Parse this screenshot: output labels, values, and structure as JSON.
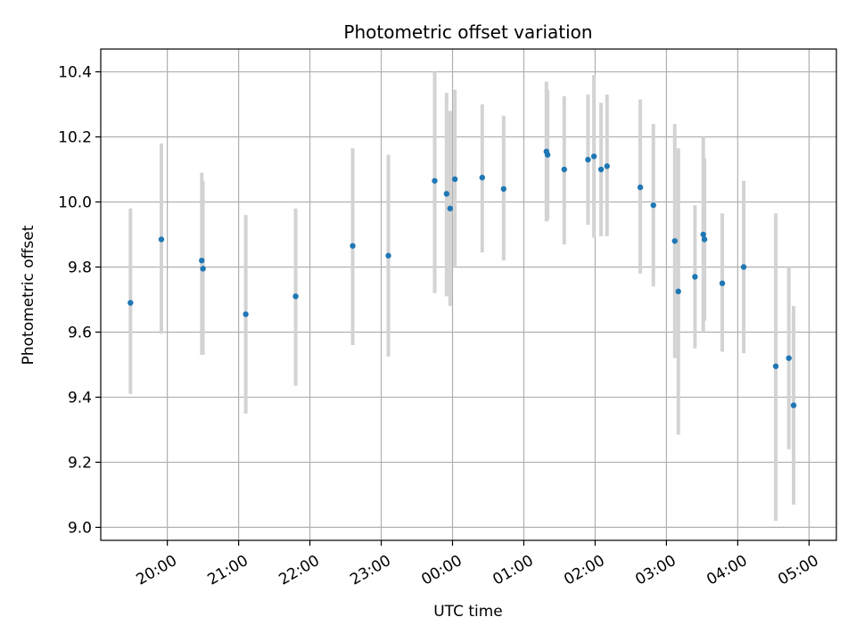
{
  "chart_data": {
    "type": "scatter",
    "title": "Photometric offset variation",
    "xlabel": "UTC time",
    "ylabel": "Photometric offset",
    "x_axis": {
      "kind": "time",
      "start": "19:04",
      "end": "05:23",
      "ticks": [
        "20:00",
        "21:00",
        "22:00",
        "23:00",
        "00:00",
        "01:00",
        "02:00",
        "03:00",
        "04:00",
        "05:00"
      ]
    },
    "y_axis": {
      "ylim": [
        8.96,
        10.47
      ],
      "ticks": [
        "9.0",
        "9.2",
        "9.4",
        "9.6",
        "9.8",
        "10.0",
        "10.2",
        "10.4"
      ]
    },
    "grid": true,
    "colors": {
      "points": "#1f77b4",
      "errorbars": "#d3d3d3",
      "grid": "#b0b0b0"
    },
    "points": [
      {
        "x": "19:29",
        "y": 9.69,
        "err_low": 9.41,
        "err_high": 9.98
      },
      {
        "x": "19:55",
        "y": 9.885,
        "err_low": 9.595,
        "err_high": 10.18
      },
      {
        "x": "20:29",
        "y": 9.82,
        "err_low": 9.53,
        "err_high": 10.09
      },
      {
        "x": "20:30",
        "y": 9.795,
        "err_low": 9.53,
        "err_high": 10.065
      },
      {
        "x": "21:06",
        "y": 9.655,
        "err_low": 9.35,
        "err_high": 9.96
      },
      {
        "x": "21:48",
        "y": 9.71,
        "err_low": 9.435,
        "err_high": 9.98
      },
      {
        "x": "22:36",
        "y": 9.865,
        "err_low": 9.56,
        "err_high": 10.165
      },
      {
        "x": "23:06",
        "y": 9.835,
        "err_low": 9.525,
        "err_high": 10.145
      },
      {
        "x": "23:45",
        "y": 10.065,
        "err_low": 9.72,
        "err_high": 10.4
      },
      {
        "x": "23:55",
        "y": 10.025,
        "err_low": 9.71,
        "err_high": 10.335
      },
      {
        "x": "23:58",
        "y": 9.98,
        "err_low": 9.68,
        "err_high": 10.28
      },
      {
        "x": "00:02",
        "y": 10.07,
        "err_low": 9.8,
        "err_high": 10.345
      },
      {
        "x": "00:25",
        "y": 10.075,
        "err_low": 9.845,
        "err_high": 10.3
      },
      {
        "x": "00:43",
        "y": 10.04,
        "err_low": 9.82,
        "err_high": 10.265
      },
      {
        "x": "01:19",
        "y": 10.155,
        "err_low": 9.94,
        "err_high": 10.37
      },
      {
        "x": "01:20",
        "y": 10.145,
        "err_low": 9.945,
        "err_high": 10.345
      },
      {
        "x": "01:34",
        "y": 10.1,
        "err_low": 9.87,
        "err_high": 10.325
      },
      {
        "x": "01:54",
        "y": 10.13,
        "err_low": 9.93,
        "err_high": 10.33
      },
      {
        "x": "01:59",
        "y": 10.14,
        "err_low": 9.89,
        "err_high": 10.39
      },
      {
        "x": "02:05",
        "y": 10.1,
        "err_low": 9.895,
        "err_high": 10.305
      },
      {
        "x": "02:10",
        "y": 10.11,
        "err_low": 9.895,
        "err_high": 10.33
      },
      {
        "x": "02:38",
        "y": 10.045,
        "err_low": 9.78,
        "err_high": 10.315
      },
      {
        "x": "02:49",
        "y": 9.99,
        "err_low": 9.74,
        "err_high": 10.24
      },
      {
        "x": "03:07",
        "y": 9.88,
        "err_low": 9.52,
        "err_high": 10.24
      },
      {
        "x": "03:10",
        "y": 9.725,
        "err_low": 9.285,
        "err_high": 10.165
      },
      {
        "x": "03:24",
        "y": 9.77,
        "err_low": 9.55,
        "err_high": 9.99
      },
      {
        "x": "03:31",
        "y": 9.9,
        "err_low": 9.6,
        "err_high": 10.2
      },
      {
        "x": "03:32",
        "y": 9.885,
        "err_low": 9.635,
        "err_high": 10.135
      },
      {
        "x": "03:47",
        "y": 9.75,
        "err_low": 9.54,
        "err_high": 9.965
      },
      {
        "x": "04:05",
        "y": 9.8,
        "err_low": 9.535,
        "err_high": 10.065
      },
      {
        "x": "04:32",
        "y": 9.495,
        "err_low": 9.02,
        "err_high": 9.965
      },
      {
        "x": "04:43",
        "y": 9.52,
        "err_low": 9.24,
        "err_high": 9.8
      },
      {
        "x": "04:47",
        "y": 9.375,
        "err_low": 9.07,
        "err_high": 9.68
      }
    ]
  }
}
